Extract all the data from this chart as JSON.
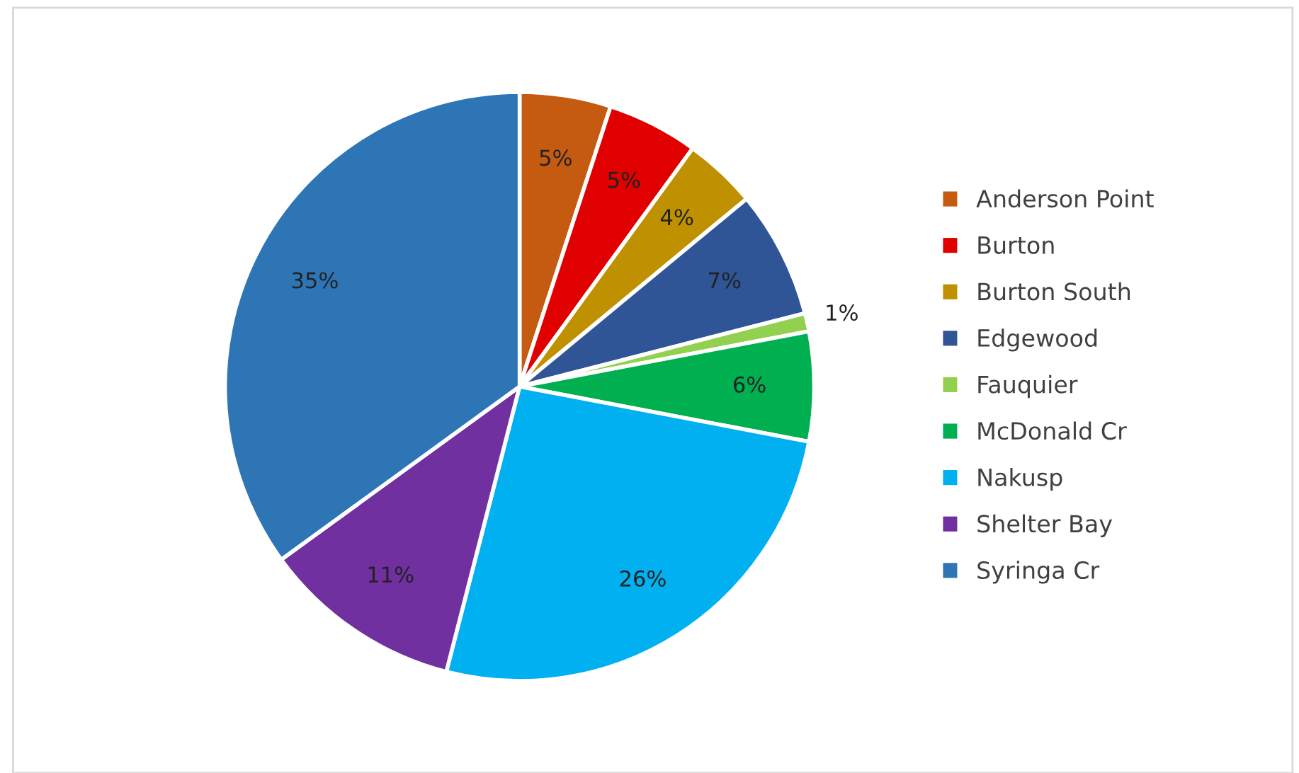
{
  "chart_data": {
    "type": "pie",
    "categories": [
      "Anderson Point",
      "Burton",
      "Burton South",
      "Edgewood",
      "Fauquier",
      "McDonald Cr",
      "Nakusp",
      "Shelter Bay",
      "Syringa Cr"
    ],
    "values": [
      5,
      5,
      4,
      7,
      1,
      6,
      26,
      11,
      35
    ],
    "value_labels": [
      "5%",
      "5%",
      "4%",
      "7%",
      "1%",
      "6%",
      "26%",
      "11%",
      "35%"
    ],
    "colors": [
      "#c55a11",
      "#e00000",
      "#bf9000",
      "#2f5597",
      "#92d050",
      "#00b050",
      "#00b0f0",
      "#7030a0",
      "#2e75b6"
    ],
    "legend": "right"
  }
}
